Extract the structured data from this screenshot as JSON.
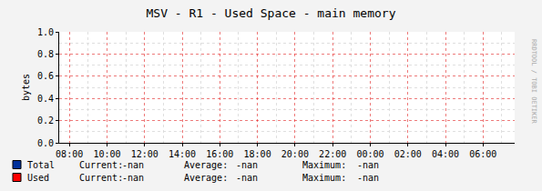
{
  "chart_data": {
    "type": "line",
    "title": "MSV - R1 - Used Space - main memory",
    "y_label": "bytes",
    "categories": [
      "08:00",
      "10:00",
      "12:00",
      "14:00",
      "16:00",
      "18:00",
      "20:00",
      "22:00",
      "00:00",
      "02:00",
      "04:00",
      "06:00"
    ],
    "series": [
      {
        "name": "Total",
        "color": "#00309b",
        "values": [
          null,
          null,
          null,
          null,
          null,
          null,
          null,
          null,
          null,
          null,
          null,
          null
        ],
        "stats": [
          {
            "label": "Current:",
            "value": "-nan"
          },
          {
            "label": "Average:",
            "value": "-nan"
          },
          {
            "label": "Maximum:",
            "value": "-nan"
          }
        ]
      },
      {
        "name": "Used",
        "color": "#ff0000",
        "values": [
          null,
          null,
          null,
          null,
          null,
          null,
          null,
          null,
          null,
          null,
          null,
          null
        ],
        "stats": [
          {
            "label": "Current:",
            "value": "-nan"
          },
          {
            "label": "Average:",
            "value": "-nan"
          },
          {
            "label": "Maximum:",
            "value": "-nan"
          }
        ]
      }
    ],
    "ylim": [
      0,
      1.0
    ],
    "yticks": [
      {
        "value": 0,
        "label": "0.0"
      },
      {
        "value": 0.2,
        "label": "0.2"
      },
      {
        "value": 0.4,
        "label": "0.4"
      },
      {
        "value": 0.6,
        "label": "0.6"
      },
      {
        "value": 0.8,
        "label": "0.8"
      },
      {
        "value": 1.0,
        "label": "1.0"
      }
    ],
    "grid": true,
    "watermark": "RRDTOOL / TOBI OETIKER"
  }
}
